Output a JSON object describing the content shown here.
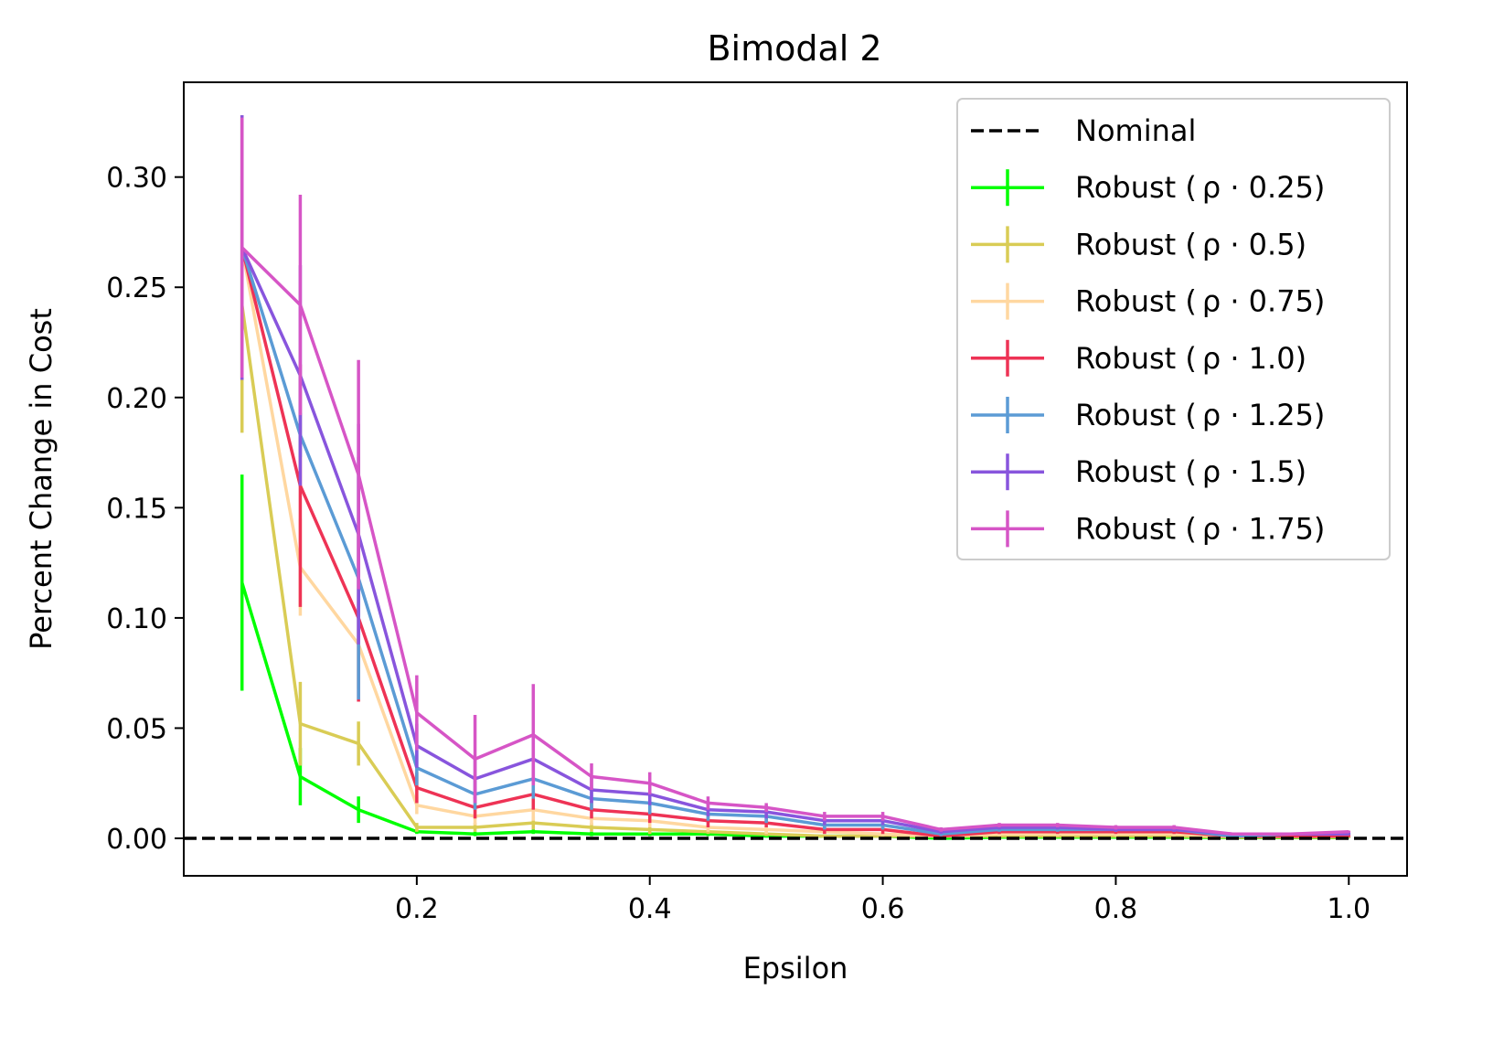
{
  "chart_data": {
    "type": "line",
    "title": "Bimodal 2",
    "xlabel": "Epsilon",
    "ylabel": "Percent Change in Cost",
    "xlim": [
      0.0,
      1.05
    ],
    "ylim": [
      -0.017,
      0.343
    ],
    "xticks": [
      0.2,
      0.4,
      0.6,
      0.8,
      1.0
    ],
    "xtick_labels": [
      "0.2",
      "0.4",
      "0.6",
      "0.8",
      "1.0"
    ],
    "yticks": [
      0.0,
      0.05,
      0.1,
      0.15,
      0.2,
      0.25,
      0.3
    ],
    "ytick_labels": [
      "0.00",
      "0.05",
      "0.10",
      "0.15",
      "0.20",
      "0.25",
      "0.30"
    ],
    "grid": false,
    "legend_position": "top-right",
    "nominal": {
      "name": "Nominal",
      "value": 0.0,
      "color": "#000000",
      "style": "dashed"
    },
    "x": [
      0.05,
      0.1,
      0.15,
      0.2,
      0.25,
      0.3,
      0.35,
      0.4,
      0.45,
      0.5,
      0.55,
      0.6,
      0.65,
      0.7,
      0.75,
      0.8,
      0.85,
      0.9,
      0.95,
      1.0
    ],
    "series": [
      {
        "name": "Robust (",
        "rho_label": "ρ · 0.25)",
        "color": "#00ff00",
        "values": [
          0.116,
          0.028,
          0.013,
          0.003,
          0.002,
          0.003,
          0.002,
          0.002,
          0.002,
          0.001,
          0.001,
          0.001,
          0.0,
          0.0005,
          0.0005,
          0.0005,
          0.0005,
          0.0003,
          0.0003,
          0.0003
        ],
        "errors": [
          0.049,
          0.013,
          0.006,
          0.001,
          0.001,
          0.001,
          0.001,
          0.001,
          0.001,
          0.0005,
          0.0005,
          0.0005,
          0.0003,
          0.0003,
          0.0003,
          0.0003,
          0.0003,
          0.0002,
          0.0002,
          0.0002
        ]
      },
      {
        "name": "Robust (",
        "rho_label": "ρ · 0.5)",
        "color": "#d9cc55",
        "values": [
          0.242,
          0.052,
          0.043,
          0.005,
          0.005,
          0.007,
          0.005,
          0.004,
          0.003,
          0.002,
          0.001,
          0.001,
          0.001,
          0.001,
          0.001,
          0.001,
          0.001,
          0.0005,
          0.0005,
          0.0005
        ],
        "errors": [
          0.058,
          0.019,
          0.01,
          0.002,
          0.002,
          0.003,
          0.002,
          0.002,
          0.001,
          0.001,
          0.0005,
          0.0005,
          0.0005,
          0.0005,
          0.0005,
          0.0005,
          0.0005,
          0.0003,
          0.0003,
          0.0003
        ]
      },
      {
        "name": "Robust (",
        "rho_label": "ρ · 0.75)",
        "color": "#ffd7a0",
        "values": [
          0.268,
          0.123,
          0.088,
          0.015,
          0.01,
          0.013,
          0.009,
          0.008,
          0.005,
          0.004,
          0.003,
          0.002,
          0.001,
          0.002,
          0.002,
          0.002,
          0.002,
          0.001,
          0.001,
          0.001
        ],
        "errors": [
          0.06,
          0.022,
          0.02,
          0.004,
          0.004,
          0.005,
          0.003,
          0.003,
          0.002,
          0.002,
          0.001,
          0.001,
          0.0005,
          0.001,
          0.001,
          0.001,
          0.001,
          0.0005,
          0.0005,
          0.0005
        ]
      },
      {
        "name": "Robust (",
        "rho_label": "ρ · 1.0)",
        "color": "#ee3355",
        "values": [
          0.268,
          0.16,
          0.1,
          0.023,
          0.014,
          0.02,
          0.013,
          0.011,
          0.008,
          0.007,
          0.004,
          0.004,
          0.001,
          0.003,
          0.003,
          0.003,
          0.003,
          0.001,
          0.001,
          0.001
        ],
        "errors": [
          0.06,
          0.055,
          0.038,
          0.007,
          0.005,
          0.007,
          0.004,
          0.004,
          0.003,
          0.002,
          0.002,
          0.002,
          0.001,
          0.001,
          0.001,
          0.001,
          0.001,
          0.0005,
          0.0005,
          0.0005
        ]
      },
      {
        "name": "Robust (",
        "rho_label": "ρ · 1.25)",
        "color": "#5b9bd5",
        "values": [
          0.268,
          0.183,
          0.118,
          0.032,
          0.02,
          0.027,
          0.018,
          0.016,
          0.011,
          0.01,
          0.006,
          0.006,
          0.002,
          0.004,
          0.004,
          0.004,
          0.004,
          0.001,
          0.002,
          0.002
        ],
        "errors": [
          0.06,
          0.01,
          0.055,
          0.008,
          0.007,
          0.009,
          0.005,
          0.005,
          0.003,
          0.003,
          0.002,
          0.002,
          0.001,
          0.001,
          0.001,
          0.001,
          0.001,
          0.0005,
          0.0005,
          0.0005
        ]
      },
      {
        "name": "Robust (",
        "rho_label": "ρ · 1.5)",
        "color": "#8855dd",
        "values": [
          0.268,
          0.21,
          0.138,
          0.042,
          0.027,
          0.036,
          0.022,
          0.02,
          0.013,
          0.012,
          0.008,
          0.008,
          0.003,
          0.005,
          0.005,
          0.004,
          0.004,
          0.002,
          0.002,
          0.002
        ],
        "errors": [
          0.06,
          0.05,
          0.05,
          0.01,
          0.009,
          0.011,
          0.006,
          0.005,
          0.003,
          0.003,
          0.002,
          0.002,
          0.001,
          0.001,
          0.001,
          0.001,
          0.001,
          0.0005,
          0.0005,
          0.0005
        ]
      },
      {
        "name": "Robust (",
        "rho_label": "ρ · 1.75)",
        "color": "#d655c6",
        "values": [
          0.268,
          0.242,
          0.165,
          0.057,
          0.036,
          0.047,
          0.028,
          0.025,
          0.016,
          0.014,
          0.01,
          0.01,
          0.004,
          0.006,
          0.006,
          0.005,
          0.005,
          0.002,
          0.002,
          0.003
        ],
        "errors": [
          0.059,
          0.05,
          0.052,
          0.017,
          0.02,
          0.023,
          0.006,
          0.005,
          0.003,
          0.002,
          0.002,
          0.002,
          0.001,
          0.001,
          0.001,
          0.001,
          0.001,
          0.0005,
          0.0005,
          0.0005
        ]
      }
    ]
  }
}
